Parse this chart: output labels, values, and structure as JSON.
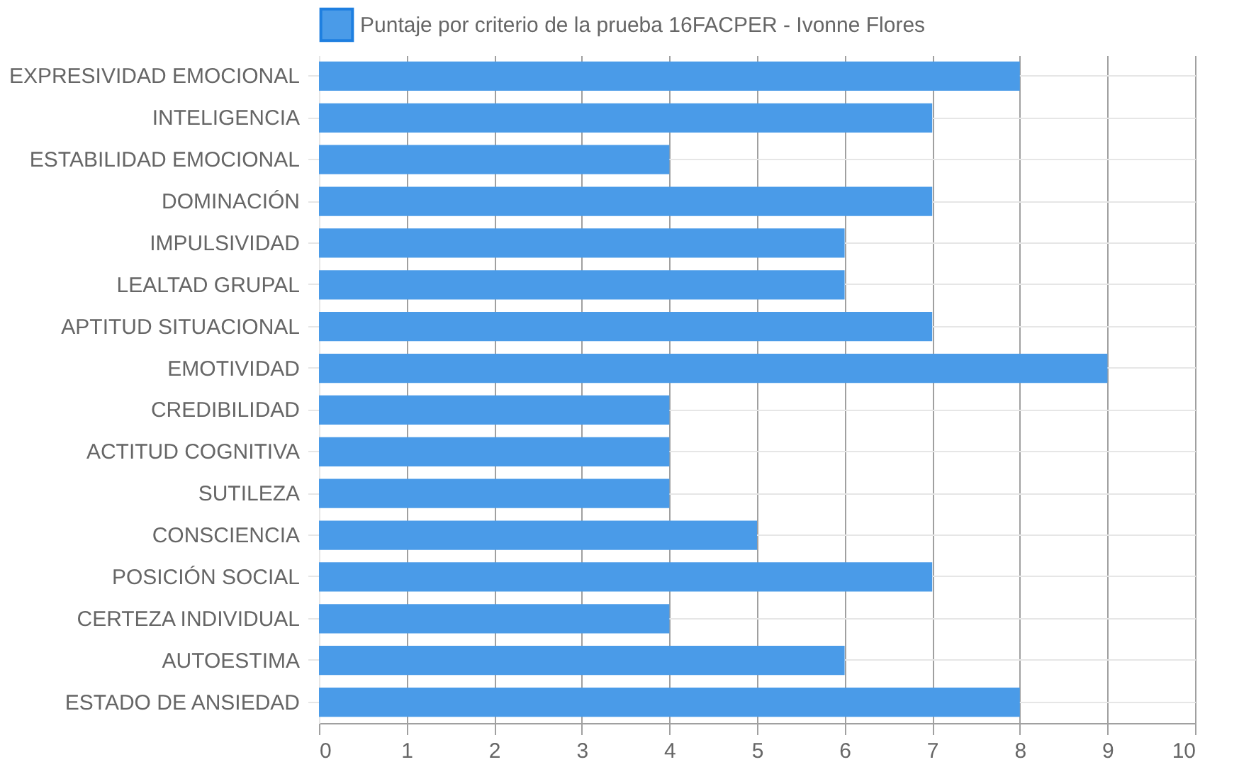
{
  "chart_data": {
    "type": "bar",
    "orientation": "horizontal",
    "categories": [
      "EXPRESIVIDAD EMOCIONAL",
      "INTELIGENCIA",
      "ESTABILIDAD EMOCIONAL",
      "DOMINACIÓN",
      "IMPULSIVIDAD",
      "LEALTAD GRUPAL",
      "APTITUD SITUACIONAL",
      "EMOTIVIDAD",
      "CREDIBILIDAD",
      "ACTITUD COGNITIVA",
      "SUTILEZA",
      "CONSCIENCIA",
      "POSICIÓN SOCIAL",
      "CERTEZA INDIVIDUAL",
      "AUTOESTIMA",
      "ESTADO DE ANSIEDAD"
    ],
    "series": [
      {
        "name": "Puntaje por criterio de la prueba 16FACPER - Ivonne Flores",
        "color": "#4a9be8",
        "values": [
          8,
          7,
          4,
          7,
          6,
          6,
          7,
          9,
          4,
          4,
          4,
          5,
          7,
          4,
          6,
          8
        ]
      }
    ],
    "xlim": [
      0,
      10
    ],
    "xticks": [
      0,
      1,
      2,
      3,
      4,
      5,
      6,
      7,
      8,
      9,
      10
    ],
    "grid": true,
    "legend": "top"
  }
}
